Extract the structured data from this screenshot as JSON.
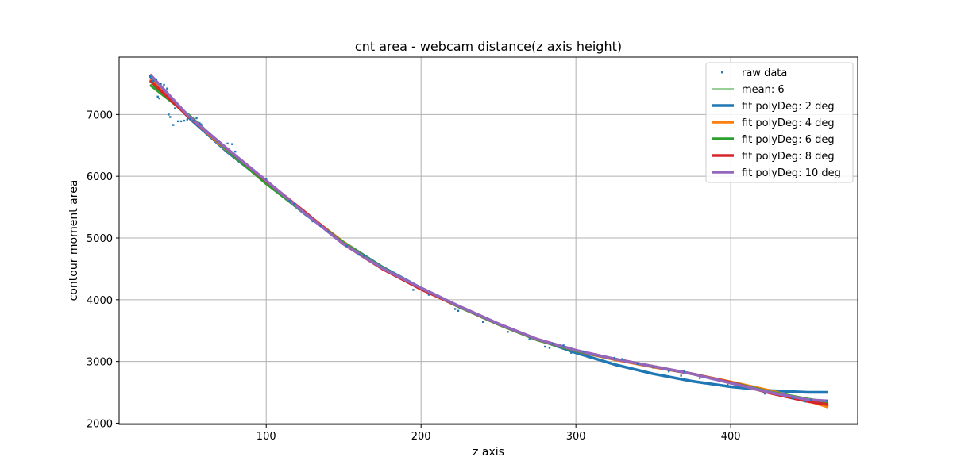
{
  "chart_data": {
    "type": "line",
    "title": "cnt area - webcam distance(z axis height)",
    "xlabel": "z axis",
    "ylabel": "contour moment area",
    "xlim": [
      5,
      482
    ],
    "ylim": [
      1980,
      7930
    ],
    "xticks": [
      100,
      200,
      300,
      400
    ],
    "yticks": [
      2000,
      3000,
      4000,
      5000,
      6000,
      7000
    ],
    "xtick_labels": [
      "100",
      "200",
      "300",
      "400"
    ],
    "ytick_labels": [
      "2000",
      "3000",
      "4000",
      "5000",
      "6000",
      "7000"
    ],
    "grid": true,
    "legend_position": "top-right",
    "legend": [
      {
        "label": "raw data",
        "style": "marker",
        "color": "#1f77b4"
      },
      {
        "label": "mean: 6",
        "style": "thin-line",
        "color": "#2ca02c"
      },
      {
        "label": "fit polyDeg: 2 deg",
        "style": "line",
        "color": "#1f77b4"
      },
      {
        "label": "fit polyDeg: 4 deg",
        "style": "line",
        "color": "#ff7f0e"
      },
      {
        "label": "fit polyDeg: 6 deg",
        "style": "line",
        "color": "#2ca02c"
      },
      {
        "label": "fit polyDeg: 8 deg",
        "style": "line",
        "color": "#d62728"
      },
      {
        "label": "fit polyDeg: 10 deg",
        "style": "line",
        "color": "#9467bd"
      }
    ],
    "scatter": {
      "name": "raw data",
      "color": "#1f77b4",
      "points": [
        [
          25,
          7620
        ],
        [
          27,
          7540
        ],
        [
          29,
          7570
        ],
        [
          30,
          7290
        ],
        [
          31,
          7260
        ],
        [
          32,
          7500
        ],
        [
          34,
          7480
        ],
        [
          36,
          7420
        ],
        [
          37,
          7000
        ],
        [
          38,
          6960
        ],
        [
          40,
          6830
        ],
        [
          41,
          7100
        ],
        [
          43,
          6890
        ],
        [
          45,
          6890
        ],
        [
          47,
          6900
        ],
        [
          49,
          6920
        ],
        [
          51,
          6930
        ],
        [
          53,
          6900
        ],
        [
          55,
          6940
        ],
        [
          57,
          6860
        ],
        [
          58,
          6840
        ],
        [
          75,
          6530
        ],
        [
          78,
          6520
        ],
        [
          80,
          6400
        ],
        [
          100,
          5960
        ],
        [
          115,
          5600
        ],
        [
          118,
          5550
        ],
        [
          130,
          5270
        ],
        [
          135,
          5200
        ],
        [
          140,
          5100
        ],
        [
          152,
          4870
        ],
        [
          160,
          4730
        ],
        [
          163,
          4710
        ],
        [
          195,
          4160
        ],
        [
          205,
          4080
        ],
        [
          222,
          3850
        ],
        [
          224,
          3820
        ],
        [
          240,
          3640
        ],
        [
          256,
          3480
        ],
        [
          270,
          3360
        ],
        [
          280,
          3240
        ],
        [
          283,
          3220
        ],
        [
          285,
          3290
        ],
        [
          292,
          3260
        ],
        [
          297,
          3140
        ],
        [
          305,
          3160
        ],
        [
          325,
          3060
        ],
        [
          330,
          3040
        ],
        [
          340,
          2960
        ],
        [
          350,
          2900
        ],
        [
          360,
          2840
        ],
        [
          368,
          2770
        ],
        [
          370,
          2840
        ],
        [
          380,
          2730
        ],
        [
          398,
          2620
        ],
        [
          410,
          2560
        ],
        [
          422,
          2480
        ],
        [
          440,
          2400
        ],
        [
          448,
          2350
        ],
        [
          452,
          2380
        ],
        [
          462,
          2360
        ]
      ]
    },
    "mean": {
      "name": "mean: 6",
      "color": "#2ca02c",
      "value": 6
    },
    "series": [
      {
        "name": "fit polyDeg: 2 deg",
        "color": "#1f77b4",
        "x": [
          25,
          50,
          75,
          100,
          125,
          150,
          175,
          200,
          225,
          250,
          275,
          300,
          325,
          350,
          375,
          400,
          425,
          450,
          463
        ],
        "y": [
          7620,
          6950,
          6390,
          5900,
          5390,
          4930,
          4530,
          4190,
          3890,
          3610,
          3360,
          3140,
          2950,
          2800,
          2680,
          2590,
          2530,
          2500,
          2500
        ]
      },
      {
        "name": "fit polyDeg: 4 deg",
        "color": "#ff7f0e",
        "x": [
          25,
          50,
          75,
          100,
          125,
          150,
          175,
          200,
          225,
          250,
          275,
          300,
          325,
          350,
          375,
          400,
          425,
          450,
          463
        ],
        "y": [
          7570,
          6970,
          6410,
          5910,
          5410,
          4930,
          4510,
          4170,
          3880,
          3600,
          3350,
          3170,
          3030,
          2910,
          2800,
          2670,
          2530,
          2360,
          2260
        ]
      },
      {
        "name": "fit polyDeg: 6 deg",
        "color": "#2ca02c",
        "x": [
          25,
          50,
          75,
          100,
          125,
          150,
          175,
          200,
          225,
          250,
          275,
          300,
          325,
          350,
          375,
          400,
          425,
          450,
          463
        ],
        "y": [
          7480,
          6990,
          6420,
          5880,
          5400,
          4920,
          4520,
          4180,
          3880,
          3600,
          3350,
          3170,
          3040,
          2920,
          2800,
          2660,
          2510,
          2390,
          2340
        ]
      },
      {
        "name": "fit polyDeg: 8 deg",
        "color": "#d62728",
        "x": [
          25,
          50,
          75,
          100,
          125,
          150,
          175,
          200,
          225,
          250,
          275,
          300,
          325,
          350,
          375,
          400,
          425,
          450,
          463
        ],
        "y": [
          7550,
          6960,
          6440,
          5920,
          5420,
          4900,
          4500,
          4170,
          3890,
          3610,
          3360,
          3180,
          3040,
          2920,
          2800,
          2660,
          2490,
          2350,
          2300
        ]
      },
      {
        "name": "fit polyDeg: 10 deg",
        "color": "#9467bd",
        "x": [
          25,
          50,
          75,
          100,
          125,
          150,
          175,
          200,
          225,
          250,
          275,
          300,
          325,
          350,
          375,
          400,
          425,
          450,
          463
        ],
        "y": [
          7650,
          6970,
          6440,
          5930,
          5400,
          4900,
          4510,
          4190,
          3890,
          3610,
          3360,
          3180,
          3040,
          2920,
          2800,
          2650,
          2500,
          2380,
          2360
        ]
      }
    ]
  }
}
